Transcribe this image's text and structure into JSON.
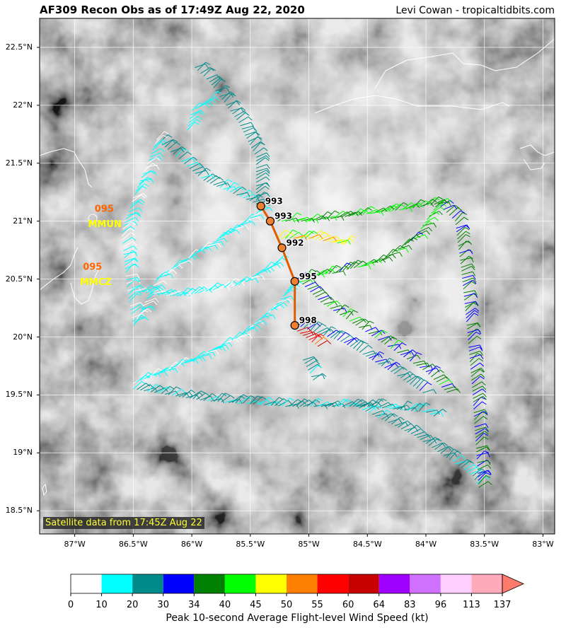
{
  "header": {
    "title": "AF309 Recon Obs as of 17:49Z Aug 22, 2020",
    "credit": "Levi Cowan - tropicaltidbits.com"
  },
  "map": {
    "lon_range": [
      -87.3,
      -82.9
    ],
    "lat_range": [
      18.3,
      22.75
    ],
    "lat_ticks": [
      {
        "v": 22.5,
        "label": "22.5°N"
      },
      {
        "v": 22,
        "label": "22°N"
      },
      {
        "v": 21.5,
        "label": "21.5°N"
      },
      {
        "v": 21,
        "label": "21°N"
      },
      {
        "v": 20.5,
        "label": "20.5°N"
      },
      {
        "v": 20,
        "label": "20°N"
      },
      {
        "v": 19.5,
        "label": "19.5°N"
      },
      {
        "v": 19,
        "label": "19°N"
      },
      {
        "v": 18.5,
        "label": "18.5°N"
      }
    ],
    "lon_ticks": [
      {
        "v": -87,
        "label": "87°W"
      },
      {
        "v": -86.5,
        "label": "86.5°W"
      },
      {
        "v": -86,
        "label": "86°W"
      },
      {
        "v": -85.5,
        "label": "85.5°W"
      },
      {
        "v": -85,
        "label": "85°W"
      },
      {
        "v": -84.5,
        "label": "84.5°W"
      },
      {
        "v": -84,
        "label": "84°W"
      },
      {
        "v": -83.5,
        "label": "83.5°W"
      },
      {
        "v": -83,
        "label": "83°W"
      }
    ],
    "satellite_note": "Satellite data from 17:45Z Aug 22",
    "colors": {
      "sat_dark": "#4a4a4a",
      "sat_light": "#e6e6e6",
      "coast": "#ffffff",
      "grid": "#ffffff",
      "track": "#e05a00",
      "center_marker": "#f08030"
    }
  },
  "stations": [
    {
      "id": "MMUN",
      "lon": -86.85,
      "lat": 20.95,
      "obs": "095",
      "obs_lon": -86.83,
      "obs_lat": 21.08
    },
    {
      "id": "MMCZ",
      "lon": -86.92,
      "lat": 20.45,
      "obs": "095",
      "obs_lon": -86.93,
      "obs_lat": 20.58
    }
  ],
  "centers": [
    {
      "pressure": "993",
      "lon": -85.41,
      "lat": 21.13
    },
    {
      "pressure": "993",
      "lon": -85.33,
      "lat": 21.0
    },
    {
      "pressure": "992",
      "lon": -85.23,
      "lat": 20.77
    },
    {
      "pressure": "995",
      "lon": -85.12,
      "lat": 20.48
    },
    {
      "pressure": "998",
      "lon": -85.12,
      "lat": 20.1
    }
  ],
  "colorbar": {
    "title": "Peak 10-second Average Flight-level Wind Speed (kt)",
    "bounds": [
      "0",
      "10",
      "20",
      "30",
      "34",
      "40",
      "45",
      "50",
      "55",
      "60",
      "64",
      "83",
      "96",
      "113",
      "137"
    ],
    "colors": [
      "#ffffff",
      "#00ffff",
      "#008b8b",
      "#0000ff",
      "#008000",
      "#00ff00",
      "#ffff00",
      "#ff8000",
      "#ff0000",
      "#c80000",
      "#a000ff",
      "#d070ff",
      "#ffd0ff",
      "#ffaabb"
    ],
    "extend_color": "#ff7b6b"
  },
  "flight_legs": [
    {
      "pts": [
        [
          -85.45,
          21.15
        ],
        [
          -85.45,
          21.55
        ],
        [
          -85.6,
          21.85
        ],
        [
          -85.85,
          22.2
        ],
        [
          -86.0,
          22.35
        ]
      ],
      "kt": 25
    },
    {
      "pts": [
        [
          -85.85,
          22.05
        ],
        [
          -86.0,
          21.95
        ],
        [
          -86.05,
          21.75
        ]
      ],
      "kt": 15
    },
    {
      "pts": [
        [
          -85.45,
          21.15
        ],
        [
          -85.9,
          21.35
        ],
        [
          -86.3,
          21.7
        ]
      ],
      "kt": 22
    },
    {
      "pts": [
        [
          -86.3,
          21.7
        ],
        [
          -86.5,
          21.2
        ],
        [
          -86.6,
          20.9
        ],
        [
          -86.55,
          20.4
        ],
        [
          -86.5,
          20.1
        ]
      ],
      "kt": 12
    },
    {
      "pts": [
        [
          -86.5,
          20.1
        ],
        [
          -86.3,
          20.5
        ],
        [
          -86.0,
          20.7
        ],
        [
          -85.6,
          20.95
        ],
        [
          -85.4,
          21.1
        ]
      ],
      "kt": 12
    },
    {
      "pts": [
        [
          -86.55,
          20.4
        ],
        [
          -86.1,
          20.35
        ],
        [
          -85.6,
          20.45
        ],
        [
          -85.25,
          20.65
        ]
      ],
      "kt": 12
    },
    {
      "pts": [
        [
          -86.5,
          19.6
        ],
        [
          -86.0,
          19.8
        ],
        [
          -85.6,
          20.0
        ],
        [
          -85.3,
          20.25
        ],
        [
          -85.15,
          20.45
        ]
      ],
      "kt": 12
    },
    {
      "pts": [
        [
          -86.5,
          19.55
        ],
        [
          -85.9,
          19.45
        ],
        [
          -85.2,
          19.4
        ],
        [
          -84.5,
          19.4
        ],
        [
          -84.0,
          19.35
        ],
        [
          -83.9,
          19.3
        ]
      ],
      "kt": 22
    },
    {
      "pts": [
        [
          -84.6,
          19.4
        ],
        [
          -84.1,
          19.15
        ],
        [
          -83.6,
          18.8
        ],
        [
          -83.55,
          18.7
        ]
      ],
      "kt": 22
    },
    {
      "pts": [
        [
          -83.55,
          18.7
        ],
        [
          -83.6,
          19.5
        ],
        [
          -83.65,
          20.1
        ],
        [
          -83.7,
          20.6
        ],
        [
          -83.75,
          21.0
        ],
        [
          -83.9,
          21.15
        ]
      ],
      "kt": 35
    },
    {
      "pts": [
        [
          -83.9,
          21.15
        ],
        [
          -84.2,
          21.1
        ],
        [
          -84.6,
          21.05
        ],
        [
          -85.0,
          21.0
        ],
        [
          -85.3,
          21.0
        ]
      ],
      "kt": 40
    },
    {
      "pts": [
        [
          -83.9,
          21.15
        ],
        [
          -84.1,
          20.85
        ],
        [
          -84.4,
          20.65
        ],
        [
          -84.8,
          20.55
        ],
        [
          -85.1,
          20.5
        ]
      ],
      "kt": 38
    },
    {
      "pts": [
        [
          -85.1,
          20.5
        ],
        [
          -84.9,
          20.3
        ],
        [
          -84.6,
          20.1
        ],
        [
          -84.3,
          19.9
        ],
        [
          -84.0,
          19.7
        ],
        [
          -83.8,
          19.5
        ]
      ],
      "kt": 36
    },
    {
      "pts": [
        [
          -85.1,
          20.1
        ],
        [
          -84.7,
          19.95
        ],
        [
          -84.3,
          19.7
        ],
        [
          -84.0,
          19.5
        ]
      ],
      "kt": 28
    },
    {
      "pts": [
        [
          -84.7,
          20.8
        ],
        [
          -85.0,
          20.85
        ],
        [
          -85.3,
          20.85
        ]
      ],
      "kt": 47
    },
    {
      "pts": [
        [
          -85.05,
          19.8
        ],
        [
          -84.95,
          19.6
        ]
      ],
      "kt": 20
    },
    {
      "pts": [
        [
          -85.1,
          20.05
        ],
        [
          -84.9,
          19.9
        ]
      ],
      "kt": 58
    }
  ]
}
